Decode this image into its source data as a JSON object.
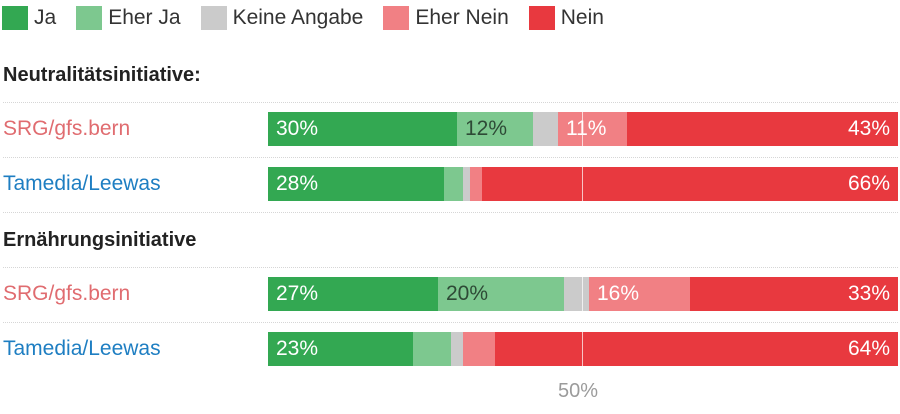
{
  "chart_data": {
    "type": "bar",
    "orientation": "horizontal",
    "stacked": true,
    "xlim": [
      0,
      100
    ],
    "legend_position": "top-left",
    "midline_label": "50%",
    "categories_legend": [
      {
        "name": "Ja",
        "color": "#33a852"
      },
      {
        "name": "Eher Ja",
        "color": "#7dc88f"
      },
      {
        "name": "Keine Angabe",
        "color": "#cbcbcb"
      },
      {
        "name": "Eher Nein",
        "color": "#f18084"
      },
      {
        "name": "Nein",
        "color": "#e8393f"
      }
    ],
    "groups": [
      {
        "title": "Neutralitätsinitiative:",
        "rows": [
          {
            "name": "SRG/gfs.bern",
            "name_color": "#e06c70",
            "values": [
              30,
              12,
              4,
              11,
              43
            ],
            "labels": [
              "30%",
              "12%",
              "",
              "11%",
              "43%"
            ]
          },
          {
            "name": "Tamedia/Leewas",
            "name_color": "#1e7ec2",
            "values": [
              28,
              3,
              1,
              2,
              66
            ],
            "labels": [
              "28%",
              "",
              "",
              "",
              "66%"
            ]
          }
        ]
      },
      {
        "title": "Ernährungsinitiative",
        "rows": [
          {
            "name": "SRG/gfs.bern",
            "name_color": "#e06c70",
            "values": [
              27,
              20,
              4,
              16,
              33
            ],
            "labels": [
              "27%",
              "20%",
              "",
              "16%",
              "33%"
            ]
          },
          {
            "name": "Tamedia/Leewas",
            "name_color": "#1e7ec2",
            "values": [
              23,
              6,
              2,
              5,
              64
            ],
            "labels": [
              "23%",
              "",
              "",
              "",
              "64%"
            ]
          }
        ]
      }
    ]
  }
}
